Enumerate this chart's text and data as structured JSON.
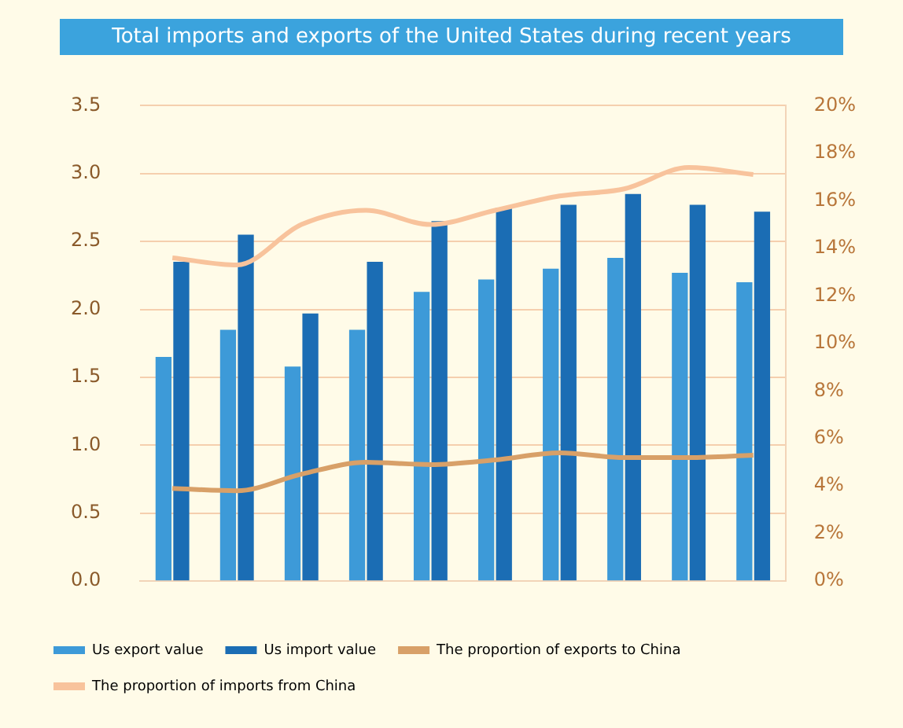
{
  "chart_data": {
    "type": "bar",
    "title": "Total imports and exports of the United States during recent years",
    "categories": [
      null,
      null,
      null,
      null,
      null,
      null,
      null,
      null,
      null,
      null
    ],
    "series": [
      {
        "name": "Us export value",
        "color": "#3d9ad8",
        "values": [
          1.65,
          1.85,
          1.58,
          1.85,
          2.13,
          2.22,
          2.3,
          2.38,
          2.27,
          2.2
        ]
      },
      {
        "name": "Us import value",
        "color": "#1b6db4",
        "values": [
          2.35,
          2.55,
          1.97,
          2.35,
          2.65,
          2.75,
          2.77,
          2.85,
          2.77,
          2.72
        ]
      },
      {
        "name": "The proportion of exports to China",
        "type": "line",
        "axis": "y2",
        "color": "#d8a068",
        "values": [
          3.9,
          3.8,
          4.5,
          5.0,
          4.9,
          5.1,
          5.4,
          5.2,
          5.2,
          5.3
        ]
      },
      {
        "name": "The proportion of imports from China",
        "type": "line",
        "axis": "y2",
        "color": "#f8c39c",
        "values": [
          13.6,
          13.3,
          15.0,
          15.6,
          15.0,
          15.6,
          16.2,
          16.5,
          17.4,
          17.1
        ]
      }
    ],
    "ylim": [
      0,
      3.5
    ],
    "yticks": [
      {
        "value": 0,
        "label": "0.0"
      },
      0.5,
      {
        "value": 1,
        "label": "1.0"
      },
      1.5,
      {
        "value": 2,
        "label": "2.0"
      },
      2.5,
      {
        "value": 3,
        "label": "3.0"
      },
      3.5
    ],
    "y2lim": [
      0,
      20
    ],
    "y2ticks": [
      {
        "value": 0,
        "label": "0%"
      },
      {
        "value": 2,
        "label": "2%"
      },
      {
        "value": 4,
        "label": "4%"
      },
      {
        "value": 6,
        "label": "6%"
      },
      {
        "value": 8,
        "label": "8%"
      },
      {
        "value": 10,
        "label": "10%"
      },
      {
        "value": 12,
        "label": "12%"
      },
      {
        "value": 14,
        "label": "14%"
      },
      {
        "value": 16,
        "label": "16%"
      },
      {
        "value": 18,
        "label": "18%"
      },
      {
        "value": 20,
        "label": "20%"
      }
    ],
    "grid": "y",
    "legend": "bottom",
    "marker": "none"
  }
}
